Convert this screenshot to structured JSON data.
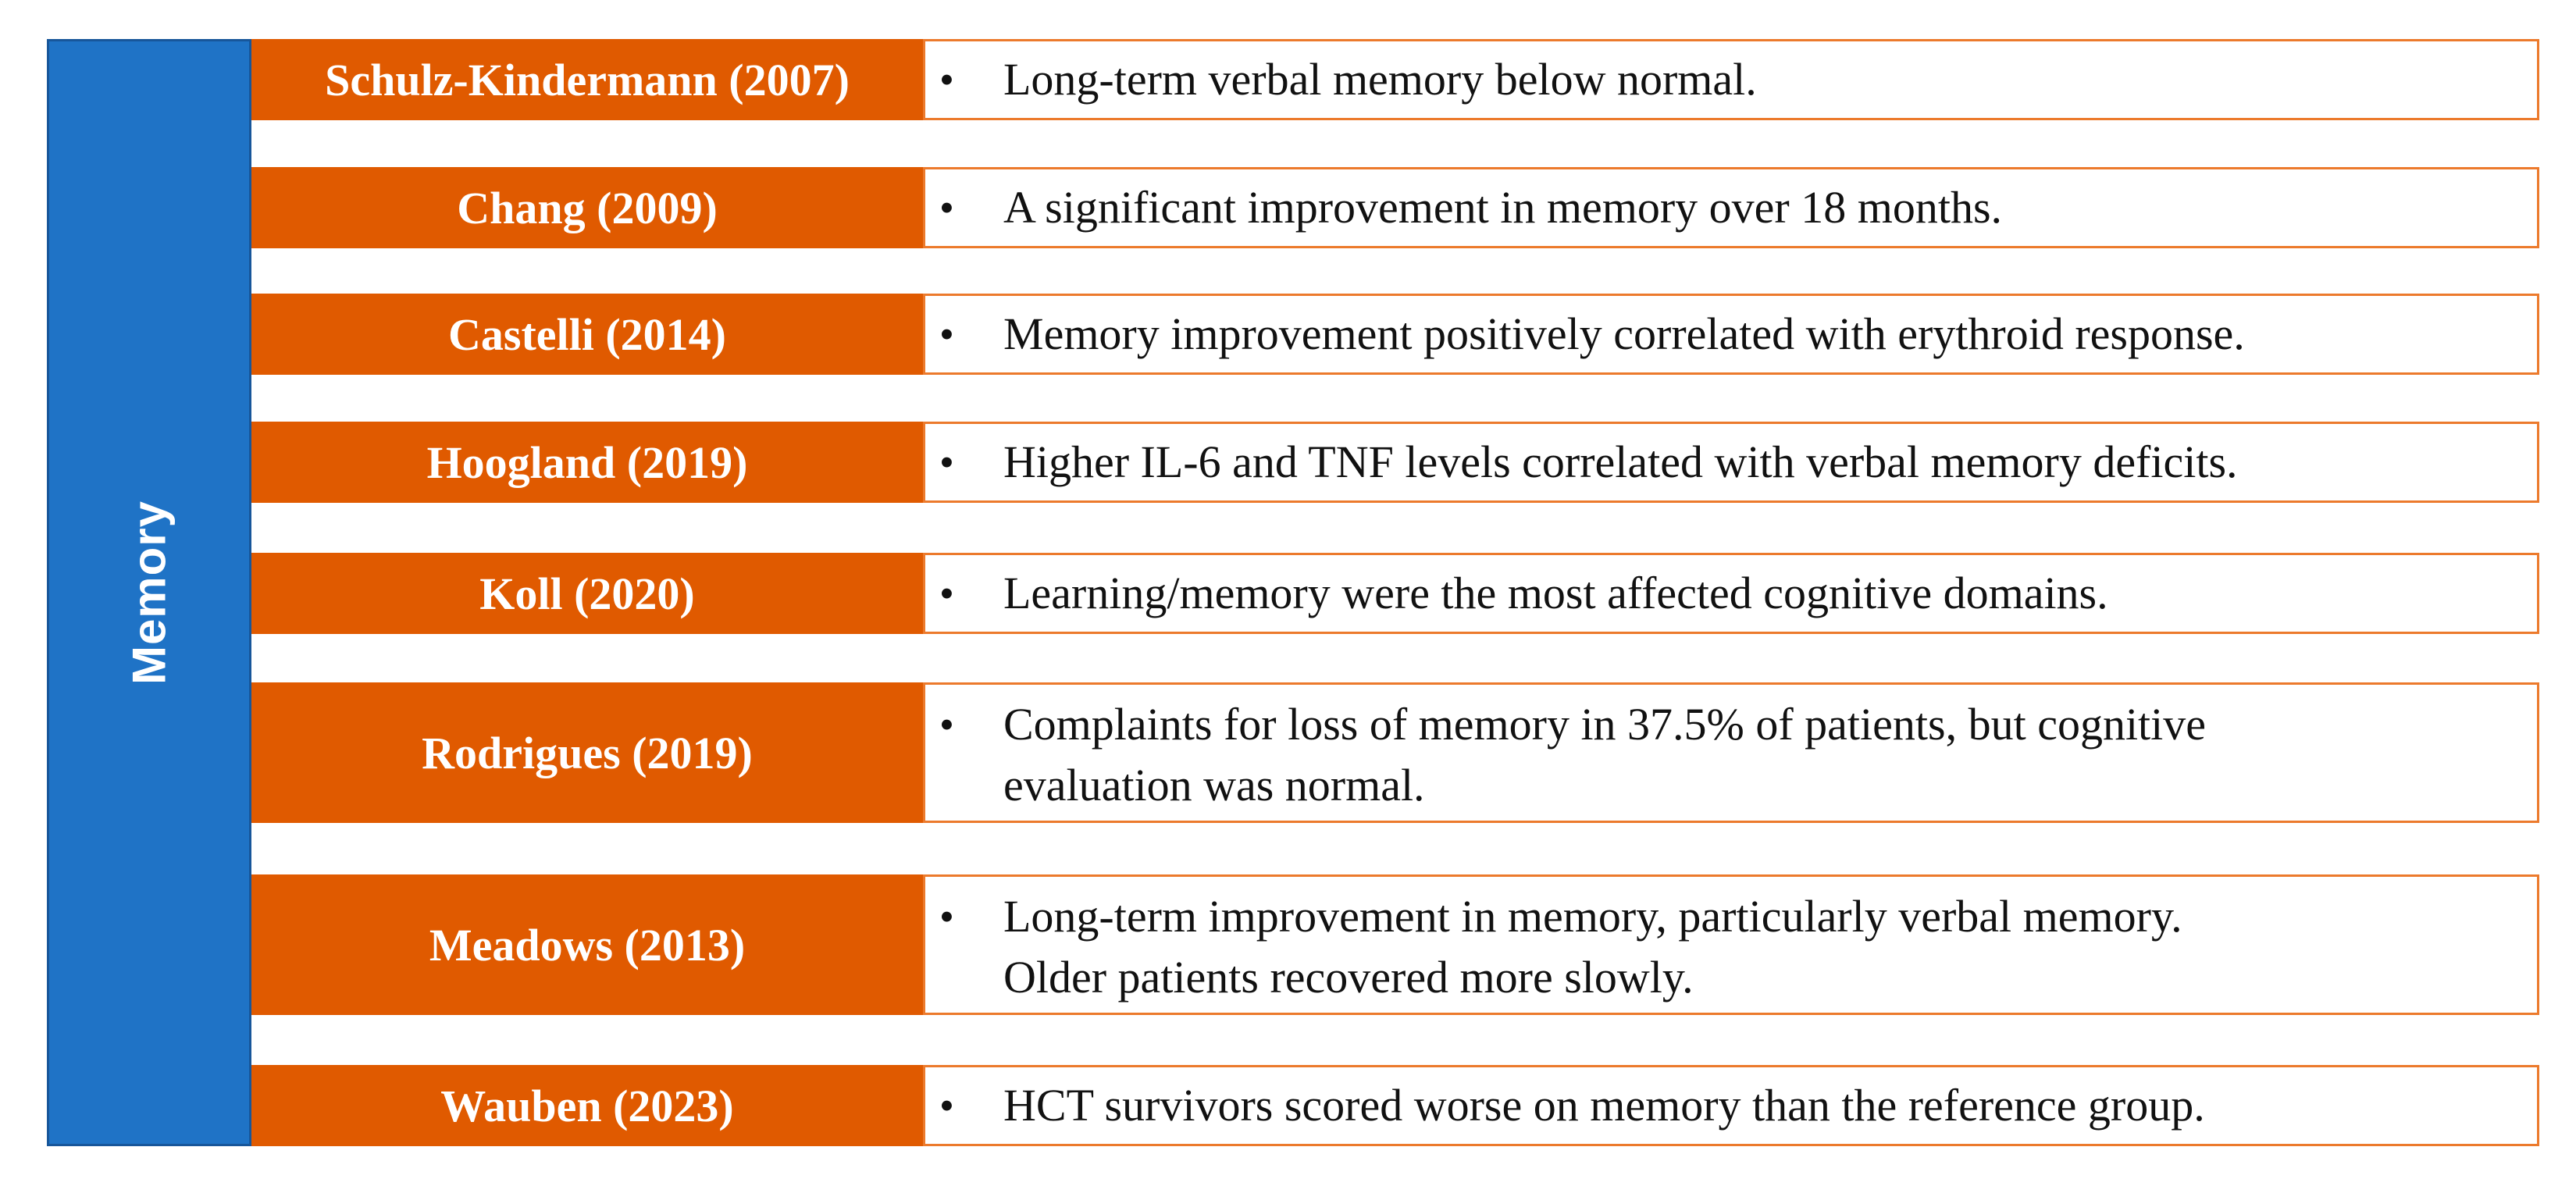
{
  "category": "Memory",
  "rows": [
    {
      "author": "Schulz-Kindermann (2007)",
      "finding": "Long-term verbal memory below normal."
    },
    {
      "author": "Chang (2009)",
      "finding": "A significant improvement in memory over 18 months."
    },
    {
      "author": "Castelli (2014)",
      "finding": "Memory improvement positively correlated with erythroid response."
    },
    {
      "author": "Hoogland (2019)",
      "finding": "Higher IL-6 and TNF levels correlated with verbal memory deficits."
    },
    {
      "author": "Koll (2020)",
      "finding": "Learning/memory were the most affected cognitive domains."
    },
    {
      "author": "Rodrigues (2019)",
      "finding": "Complaints for loss of memory in 37.5% of patients, but cognitive\nevaluation was normal."
    },
    {
      "author": "Meadows (2013)",
      "finding": "Long-term improvement in memory, particularly verbal memory.\nOlder patients recovered more slowly."
    },
    {
      "author": "Wauben (2023)",
      "finding": "HCT survivors scored worse on memory than the reference group."
    }
  ],
  "colors": {
    "category_fill": "#1f73c6",
    "author_fill": "#e05a00",
    "finding_border": "#ec7a2c"
  },
  "bullet_glyph": "•"
}
